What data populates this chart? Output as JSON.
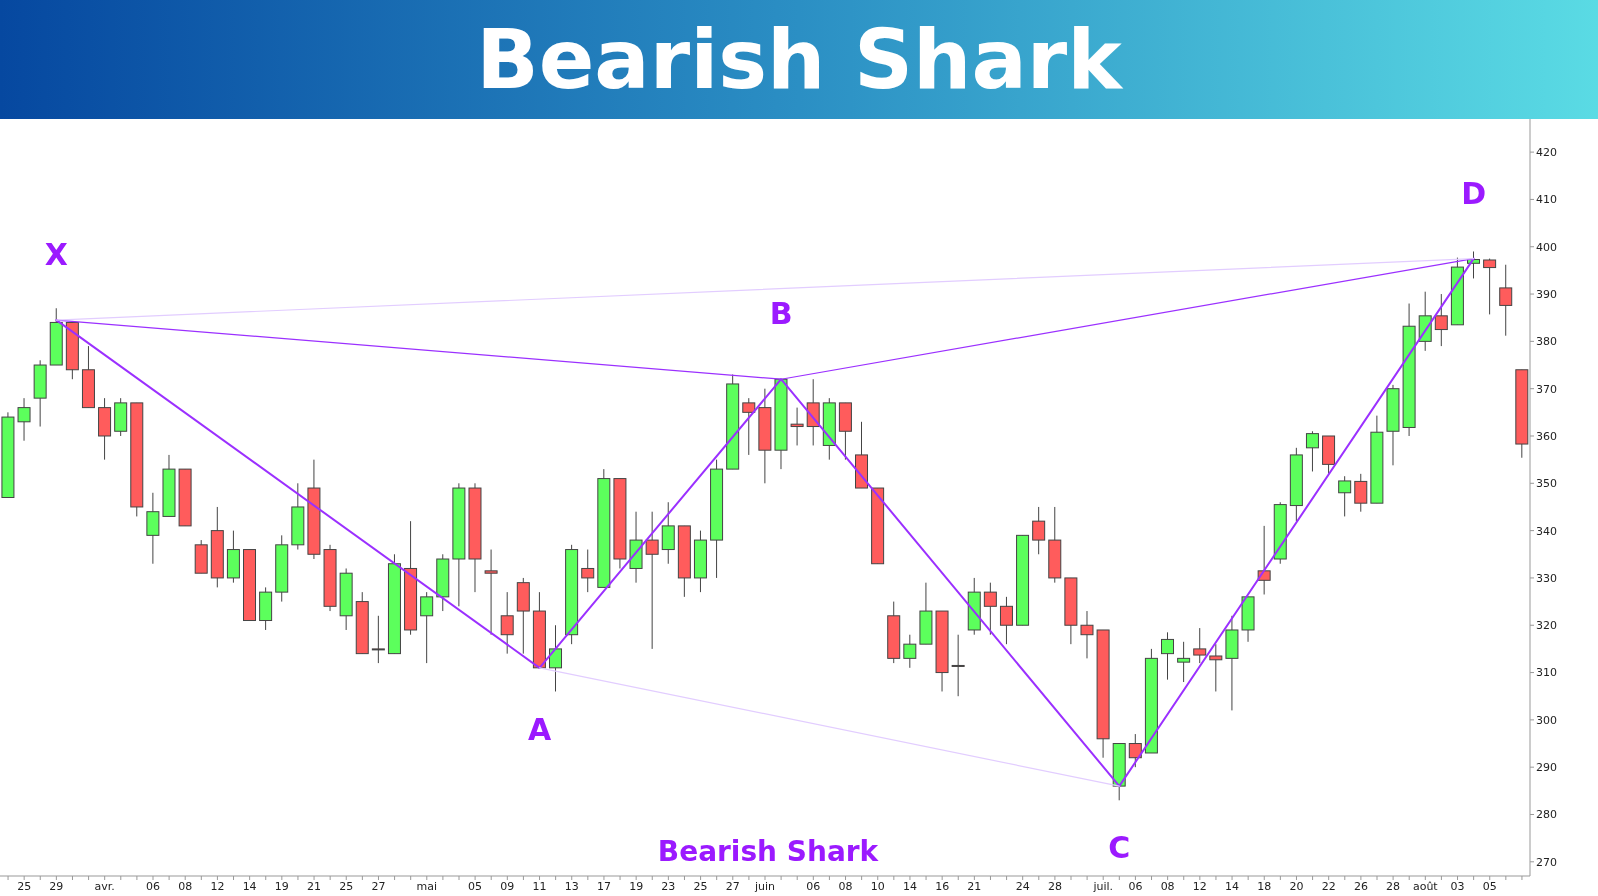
{
  "chart_data": {
    "type": "candlestick",
    "title": "Bearish Shark",
    "categories": [
      null,
      "25",
      null,
      "29",
      null,
      null,
      "avr.",
      null,
      null,
      "06",
      null,
      "08",
      null,
      "12",
      null,
      "14",
      null,
      "19",
      null,
      "21",
      null,
      "25",
      null,
      "27",
      null,
      null,
      "mai",
      null,
      null,
      "05",
      null,
      "09",
      null,
      "11",
      null,
      "13",
      null,
      "17",
      null,
      "19",
      null,
      "23",
      null,
      "25",
      null,
      "27",
      null,
      "juin",
      null,
      null,
      "06",
      null,
      "08",
      null,
      "10",
      null,
      "14",
      null,
      "16",
      null,
      "21",
      null,
      null,
      "24",
      null,
      "28",
      null,
      null,
      "juil.",
      null,
      "06",
      null,
      "08",
      null,
      "12",
      null,
      "14",
      null,
      "18",
      null,
      "20",
      null,
      "22",
      null,
      "26",
      null,
      "28",
      null,
      "août",
      null,
      "03",
      null,
      "05",
      null,
      null
    ],
    "ohlc": [
      [
        347,
        365,
        347,
        364
      ],
      [
        363,
        368,
        359,
        366
      ],
      [
        368,
        376,
        362,
        375
      ],
      [
        375,
        387,
        375,
        384
      ],
      [
        384,
        384,
        372,
        374
      ],
      [
        374,
        379,
        366,
        366
      ],
      [
        366,
        368,
        355,
        360
      ],
      [
        361,
        368,
        360,
        367
      ],
      [
        367,
        367,
        343,
        345
      ],
      [
        339,
        348,
        333,
        344
      ],
      [
        343,
        356,
        343,
        353
      ],
      [
        353,
        353,
        341,
        341
      ],
      [
        337,
        338,
        331,
        331
      ],
      [
        340,
        345,
        328,
        330
      ],
      [
        330,
        340,
        329,
        336
      ],
      [
        336,
        336,
        321,
        321
      ],
      [
        321,
        328,
        319,
        327
      ],
      [
        327,
        339,
        325,
        337
      ],
      [
        337,
        350,
        336,
        345
      ],
      [
        349,
        355,
        334,
        335
      ],
      [
        336,
        337,
        323,
        324
      ],
      [
        322,
        332,
        319,
        331
      ],
      [
        325,
        327,
        314,
        314
      ],
      [
        315,
        322,
        312,
        315
      ],
      [
        314,
        335,
        314,
        333
      ],
      [
        332,
        342,
        318,
        319
      ],
      [
        322,
        327,
        312,
        326
      ],
      [
        326,
        335,
        323,
        334
      ],
      [
        334,
        350,
        324,
        349
      ],
      [
        349,
        350,
        327,
        334
      ],
      [
        331.5,
        336,
        318,
        331
      ],
      [
        322,
        327,
        314,
        318
      ],
      [
        329,
        330,
        314,
        323
      ],
      [
        323,
        327,
        311,
        311
      ],
      [
        311,
        320,
        306,
        315
      ],
      [
        318,
        337,
        316,
        336
      ],
      [
        332,
        336,
        327,
        330
      ],
      [
        328,
        353,
        328,
        351
      ],
      [
        351,
        351,
        332,
        334
      ],
      [
        332,
        344,
        329,
        338
      ],
      [
        338,
        344,
        315,
        335
      ],
      [
        336,
        346,
        333,
        341
      ],
      [
        341,
        341,
        326,
        330
      ],
      [
        330,
        340,
        327,
        338
      ],
      [
        338,
        355,
        330,
        353
      ],
      [
        353,
        373,
        353,
        371
      ],
      [
        367,
        368,
        356,
        365
      ],
      [
        366,
        370,
        350,
        357
      ],
      [
        357,
        372,
        353,
        372
      ],
      [
        362.5,
        366,
        358,
        362
      ],
      [
        367,
        372,
        358,
        362
      ],
      [
        358,
        368,
        355,
        367
      ],
      [
        367,
        367,
        355,
        361
      ],
      [
        356,
        363,
        349,
        349
      ],
      [
        349,
        349,
        333,
        333
      ],
      [
        322,
        325,
        312,
        313
      ],
      [
        313,
        318,
        311,
        316
      ],
      [
        316,
        329,
        316,
        323
      ],
      [
        323,
        323,
        306,
        310
      ],
      [
        311.5,
        318,
        305,
        311.5
      ],
      [
        319,
        330,
        318,
        327
      ],
      [
        327,
        329,
        318,
        324
      ],
      [
        324,
        326,
        316,
        320
      ],
      [
        320,
        339,
        320,
        339
      ],
      [
        342,
        345,
        335,
        338
      ],
      [
        338,
        345,
        329,
        330
      ],
      [
        330,
        330,
        316,
        320
      ],
      [
        320,
        323,
        313,
        318
      ],
      [
        319,
        319,
        292,
        296
      ],
      [
        286,
        295,
        283,
        295
      ],
      [
        295,
        297,
        290,
        292
      ],
      [
        293,
        315,
        293,
        313
      ],
      [
        314,
        318.5,
        308.5,
        317
      ],
      [
        312.2,
        316.5,
        308,
        313
      ],
      [
        315,
        319.4,
        312,
        313.7
      ],
      [
        313.5,
        316,
        306,
        312.7
      ],
      [
        313,
        322,
        302,
        319
      ],
      [
        319,
        326,
        316.5,
        326
      ],
      [
        331.5,
        341,
        326.5,
        329.5
      ],
      [
        334,
        346,
        333,
        345.5
      ],
      [
        345.3,
        357.5,
        342,
        356
      ],
      [
        357.5,
        361,
        352.5,
        360.5
      ],
      [
        360,
        360,
        352,
        354
      ],
      [
        348,
        351.5,
        343,
        350.5
      ],
      [
        350.4,
        352,
        344,
        345.8
      ],
      [
        345.8,
        364.3,
        345.8,
        360.8
      ],
      [
        361,
        370.8,
        353.8,
        370
      ],
      [
        361.8,
        388,
        360,
        383.2
      ],
      [
        380,
        390.5,
        378,
        385.4
      ],
      [
        385.4,
        390,
        379,
        382.5
      ],
      [
        383.5,
        397.7,
        383.5,
        395.7
      ],
      [
        396.5,
        399,
        393.3,
        397.3
      ],
      [
        397.2,
        397.5,
        385.7,
        395.6
      ],
      [
        391.3,
        396.2,
        381.2,
        387.6
      ],
      [
        374,
        374,
        355.4,
        358.3
      ]
    ],
    "colors": [
      "#5cff5c",
      "#5cff5c",
      "#5cff5c",
      "#5cff5c",
      "#ff5c5c",
      "#ff5c5c",
      "#ff5c5c",
      "#5cff5c",
      "#ff5c5c",
      "#5cff5c",
      "#5cff5c",
      "#ff5c5c",
      "#ff5c5c",
      "#ff5c5c",
      "#5cff5c",
      "#ff5c5c",
      "#5cff5c",
      "#5cff5c",
      "#5cff5c",
      "#ff5c5c",
      "#ff5c5c",
      "#5cff5c",
      "#ff5c5c",
      "#ff5c5c",
      "#5cff5c",
      "#ff5c5c",
      "#5cff5c",
      "#5cff5c",
      "#5cff5c",
      "#ff5c5c",
      "#ff5c5c",
      "#ff5c5c",
      "#ff5c5c",
      "#ff5c5c",
      "#5cff5c",
      "#5cff5c",
      "#ff5c5c",
      "#5cff5c",
      "#ff5c5c",
      "#5cff5c",
      "#ff5c5c",
      "#5cff5c",
      "#ff5c5c",
      "#5cff5c",
      "#5cff5c",
      "#5cff5c",
      "#ff5c5c",
      "#ff5c5c",
      "#5cff5c",
      "#ff5c5c",
      "#ff5c5c",
      "#5cff5c",
      "#ff5c5c",
      "#ff5c5c",
      "#ff5c5c",
      "#ff5c5c",
      "#5cff5c",
      "#5cff5c",
      "#ff5c5c",
      "#ff5c5c",
      "#5cff5c",
      "#ff5c5c",
      "#ff5c5c",
      "#5cff5c",
      "#ff5c5c",
      "#ff5c5c",
      "#ff5c5c",
      "#ff5c5c",
      "#ff5c5c",
      "#5cff5c",
      "#ff5c5c",
      "#5cff5c",
      "#5cff5c",
      "#5cff5c",
      "#ff5c5c",
      "#ff5c5c",
      "#5cff5c",
      "#5cff5c",
      "#ff5c5c",
      "#5cff5c",
      "#5cff5c",
      "#5cff5c",
      "#ff5c5c",
      "#5cff5c",
      "#ff5c5c",
      "#5cff5c",
      "#5cff5c",
      "#5cff5c",
      "#5cff5c",
      "#ff5c5c",
      "#5cff5c",
      "#5cff5c",
      "#ff5c5c",
      "#ff5c5c",
      "#ff5c5c"
    ],
    "series": [
      {
        "type": "line",
        "color": "#9b30ff",
        "values": [
          null,
          null,
          null,
          384.5,
          null,
          null,
          null,
          null,
          null,
          null,
          null,
          null,
          null,
          null,
          null,
          null,
          null,
          null,
          null,
          null,
          null,
          null,
          null,
          null,
          null,
          null,
          null,
          null,
          null,
          null,
          null,
          null,
          null,
          311,
          null,
          null,
          null,
          null,
          null,
          null,
          null,
          null,
          null,
          null,
          null,
          null,
          null,
          null,
          372,
          null,
          null,
          null,
          null,
          null,
          null,
          null,
          null,
          null,
          null,
          null,
          null,
          null,
          null,
          null,
          null,
          null,
          null,
          null,
          null,
          286,
          null,
          null,
          null,
          null,
          null,
          null,
          null,
          null,
          null,
          null,
          null,
          null,
          null,
          null,
          null,
          null,
          null,
          null,
          null,
          null,
          null,
          397.5,
          null,
          null,
          null
        ]
      },
      {
        "type": "line",
        "color": "#9b30ff",
        "values": [
          null,
          null,
          null,
          384.5,
          null,
          null,
          null,
          null,
          null,
          null,
          null,
          null,
          null,
          null,
          null,
          null,
          null,
          null,
          null,
          null,
          null,
          null,
          null,
          null,
          null,
          null,
          null,
          null,
          null,
          null,
          null,
          null,
          null,
          null,
          null,
          null,
          null,
          null,
          null,
          null,
          null,
          null,
          null,
          null,
          null,
          null,
          null,
          null,
          372,
          null,
          null,
          null,
          null,
          null,
          null,
          null,
          null,
          null,
          null,
          null,
          null,
          null,
          null,
          null,
          null,
          null,
          null,
          null,
          null,
          null,
          null,
          null,
          null,
          null,
          null,
          null,
          null,
          null,
          null,
          null,
          null,
          null,
          null,
          null,
          null,
          null,
          null,
          null,
          null,
          null,
          null,
          397.5,
          null,
          null,
          null
        ]
      },
      {
        "type": "line",
        "color": "#e2cdff",
        "values": [
          null,
          null,
          null,
          384.5,
          null,
          null,
          null,
          null,
          null,
          null,
          null,
          null,
          null,
          null,
          null,
          null,
          null,
          null,
          null,
          null,
          null,
          null,
          null,
          null,
          null,
          null,
          null,
          null,
          null,
          null,
          null,
          null,
          null,
          null,
          null,
          null,
          null,
          null,
          null,
          null,
          null,
          null,
          null,
          null,
          null,
          null,
          null,
          null,
          null,
          null,
          null,
          null,
          null,
          null,
          null,
          null,
          null,
          null,
          null,
          null,
          null,
          null,
          null,
          null,
          null,
          null,
          null,
          null,
          null,
          null,
          null,
          null,
          null,
          null,
          null,
          null,
          null,
          null,
          null,
          null,
          null,
          null,
          null,
          null,
          null,
          null,
          null,
          null,
          null,
          null,
          null,
          397.5,
          null,
          null,
          null
        ]
      },
      {
        "type": "line",
        "color": "#e2cdff",
        "values": [
          null,
          null,
          null,
          null,
          null,
          null,
          null,
          null,
          null,
          null,
          null,
          null,
          null,
          null,
          null,
          null,
          null,
          null,
          null,
          null,
          null,
          null,
          null,
          null,
          null,
          null,
          null,
          null,
          null,
          null,
          null,
          null,
          null,
          311,
          null,
          null,
          null,
          null,
          null,
          null,
          null,
          null,
          null,
          null,
          null,
          null,
          null,
          null,
          null,
          null,
          null,
          null,
          null,
          null,
          null,
          null,
          null,
          null,
          null,
          null,
          null,
          null,
          null,
          null,
          null,
          null,
          null,
          null,
          null,
          286,
          null,
          null,
          null,
          null,
          null,
          null,
          null,
          null,
          null,
          null,
          null,
          null,
          null,
          null,
          null,
          null,
          null,
          null,
          null,
          null,
          null,
          null,
          null,
          null,
          null
        ]
      }
    ],
    "annotations": [
      "X",
      "A",
      "B",
      "C",
      "D",
      "Bearish Shark"
    ],
    "ylim": [
      267,
      427
    ],
    "yticks": [
      270,
      280,
      290,
      300,
      310,
      320,
      330,
      340,
      350,
      360,
      370,
      380,
      390,
      400,
      410,
      420
    ],
    "marker": "none"
  }
}
